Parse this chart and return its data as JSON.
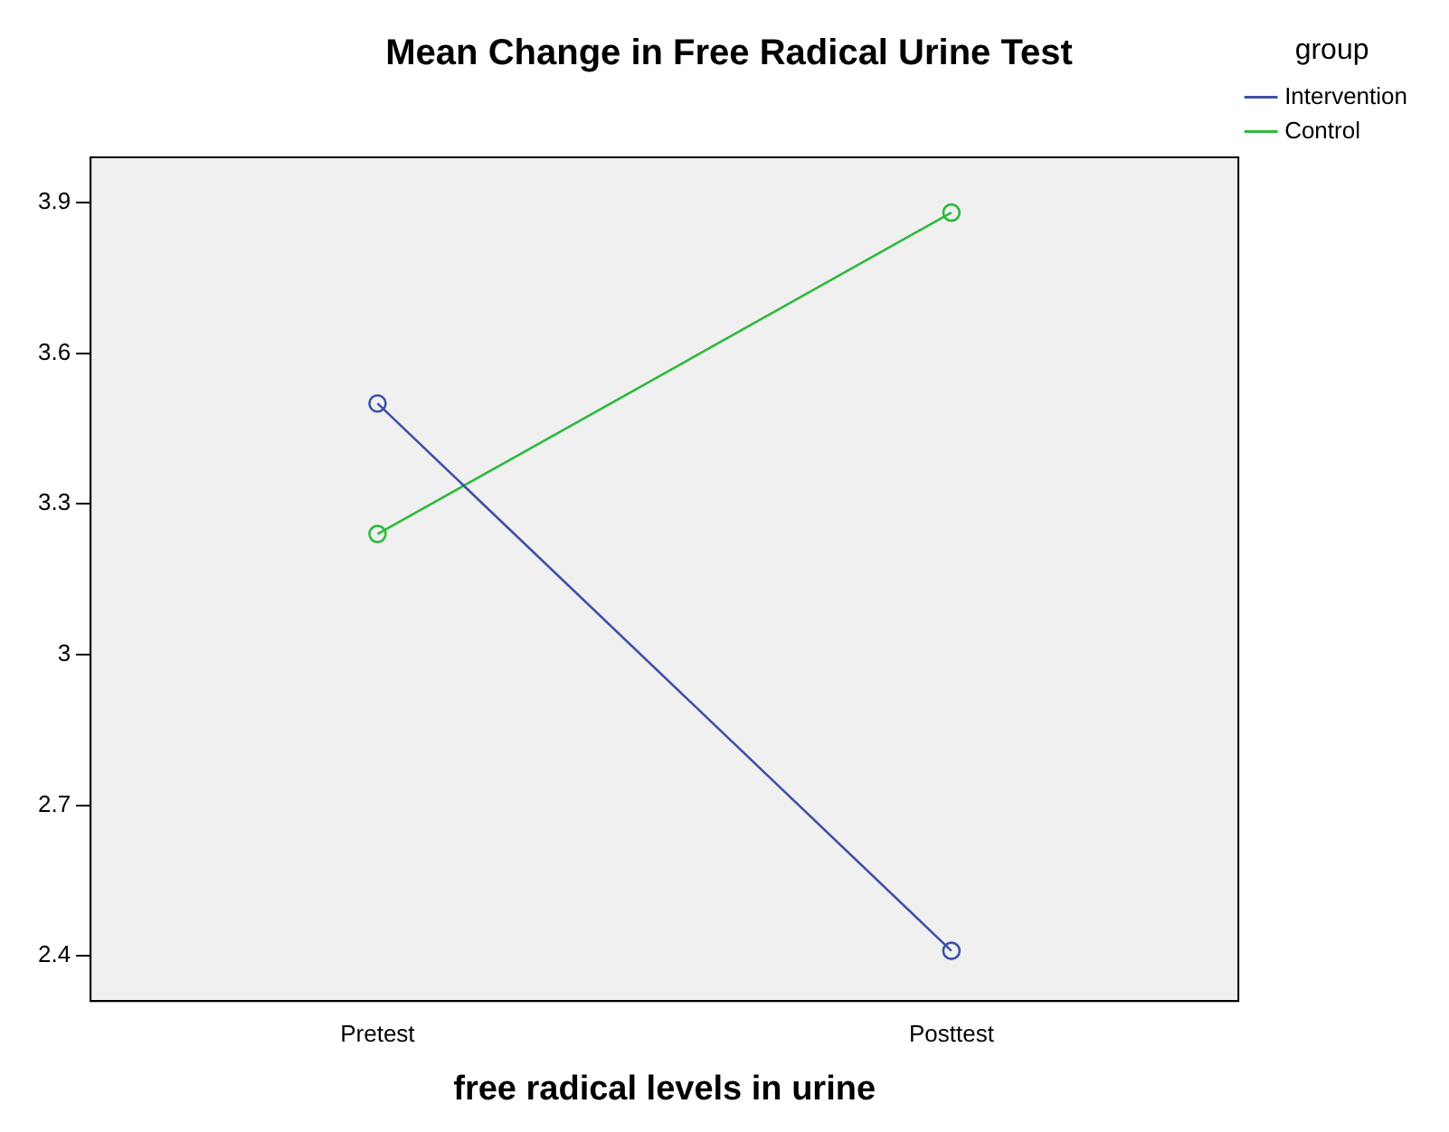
{
  "chart_data": {
    "type": "line",
    "title": "Mean Change in Free Radical Urine Test",
    "xlabel": "free radical levels in urine",
    "legend_title": "group",
    "categories": [
      "Pretest",
      "Posttest"
    ],
    "series": [
      {
        "name": "Intervention",
        "color": "#3e50a8",
        "values": [
          3.5,
          2.41
        ]
      },
      {
        "name": "Control",
        "color": "#2db83d",
        "values": [
          3.24,
          3.88
        ]
      }
    ],
    "ylim": [
      2.31,
      3.99
    ],
    "yticks": [
      2.4,
      2.7,
      3,
      3.3,
      3.6,
      3.9
    ],
    "grid": false,
    "legend": "top right",
    "marker": "circle",
    "line_style": "solid"
  }
}
